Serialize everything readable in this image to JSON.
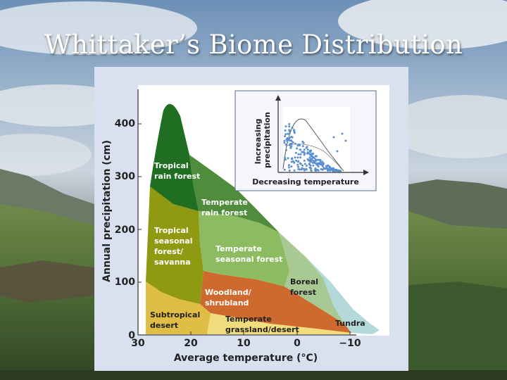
{
  "slide": {
    "title": "Whittaker’s Biome Distribution"
  },
  "colors": {
    "tropical_rain_forest": "#1f6e22",
    "tropical_seasonal_forest": "#8f9a12",
    "temperate_rain_forest": "#4f8c3b",
    "temperate_seasonal_forest": "#8dbb61",
    "boreal_forest": "#a8c993",
    "woodland_shrubland": "#cf6a2e",
    "subtropical_desert": "#e0be45",
    "temperate_grassland_desert": "#f2dd7e",
    "tundra": "#b4d9da",
    "panel": "#d9e1f1",
    "plot_bg": "#ffffff"
  },
  "diagram": {
    "y_axis_label": "Annual precipitation (cm)",
    "x_axis_label": "Average temperature (°C)",
    "y_ticks": [
      {
        "value": 0,
        "label": "0"
      },
      {
        "value": 100,
        "label": "100"
      },
      {
        "value": 200,
        "label": "200"
      },
      {
        "value": 300,
        "label": "300"
      },
      {
        "value": 400,
        "label": "400"
      }
    ],
    "x_ticks": [
      {
        "value": 30,
        "label": "30"
      },
      {
        "value": 20,
        "label": "20"
      },
      {
        "value": 10,
        "label": "10"
      },
      {
        "value": 0,
        "label": "0"
      },
      {
        "value": -10,
        "label": "−10"
      }
    ],
    "biomes": {
      "tropical_rain_forest": [
        "Tropical",
        "rain forest"
      ],
      "temperate_rain_forest": [
        "Temperate",
        "rain forest"
      ],
      "tropical_seasonal_forest": [
        "Tropical",
        "seasonal",
        "forest/",
        "savanna"
      ],
      "temperate_seasonal_forest": [
        "Temperate",
        "seasonal forest"
      ],
      "boreal_forest": [
        "Boreal",
        "forest"
      ],
      "woodland_shrubland": [
        "Woodland/",
        "shrubland"
      ],
      "subtropical_desert": [
        "Subtropical",
        "desert"
      ],
      "temperate_grassland_desert": [
        "Temperate",
        "grassland/desert"
      ],
      "tundra": [
        "Tundra"
      ]
    },
    "inset": {
      "y_label": [
        "Increasing",
        "precipitation"
      ],
      "x_label": "Decreasing temperature"
    }
  }
}
